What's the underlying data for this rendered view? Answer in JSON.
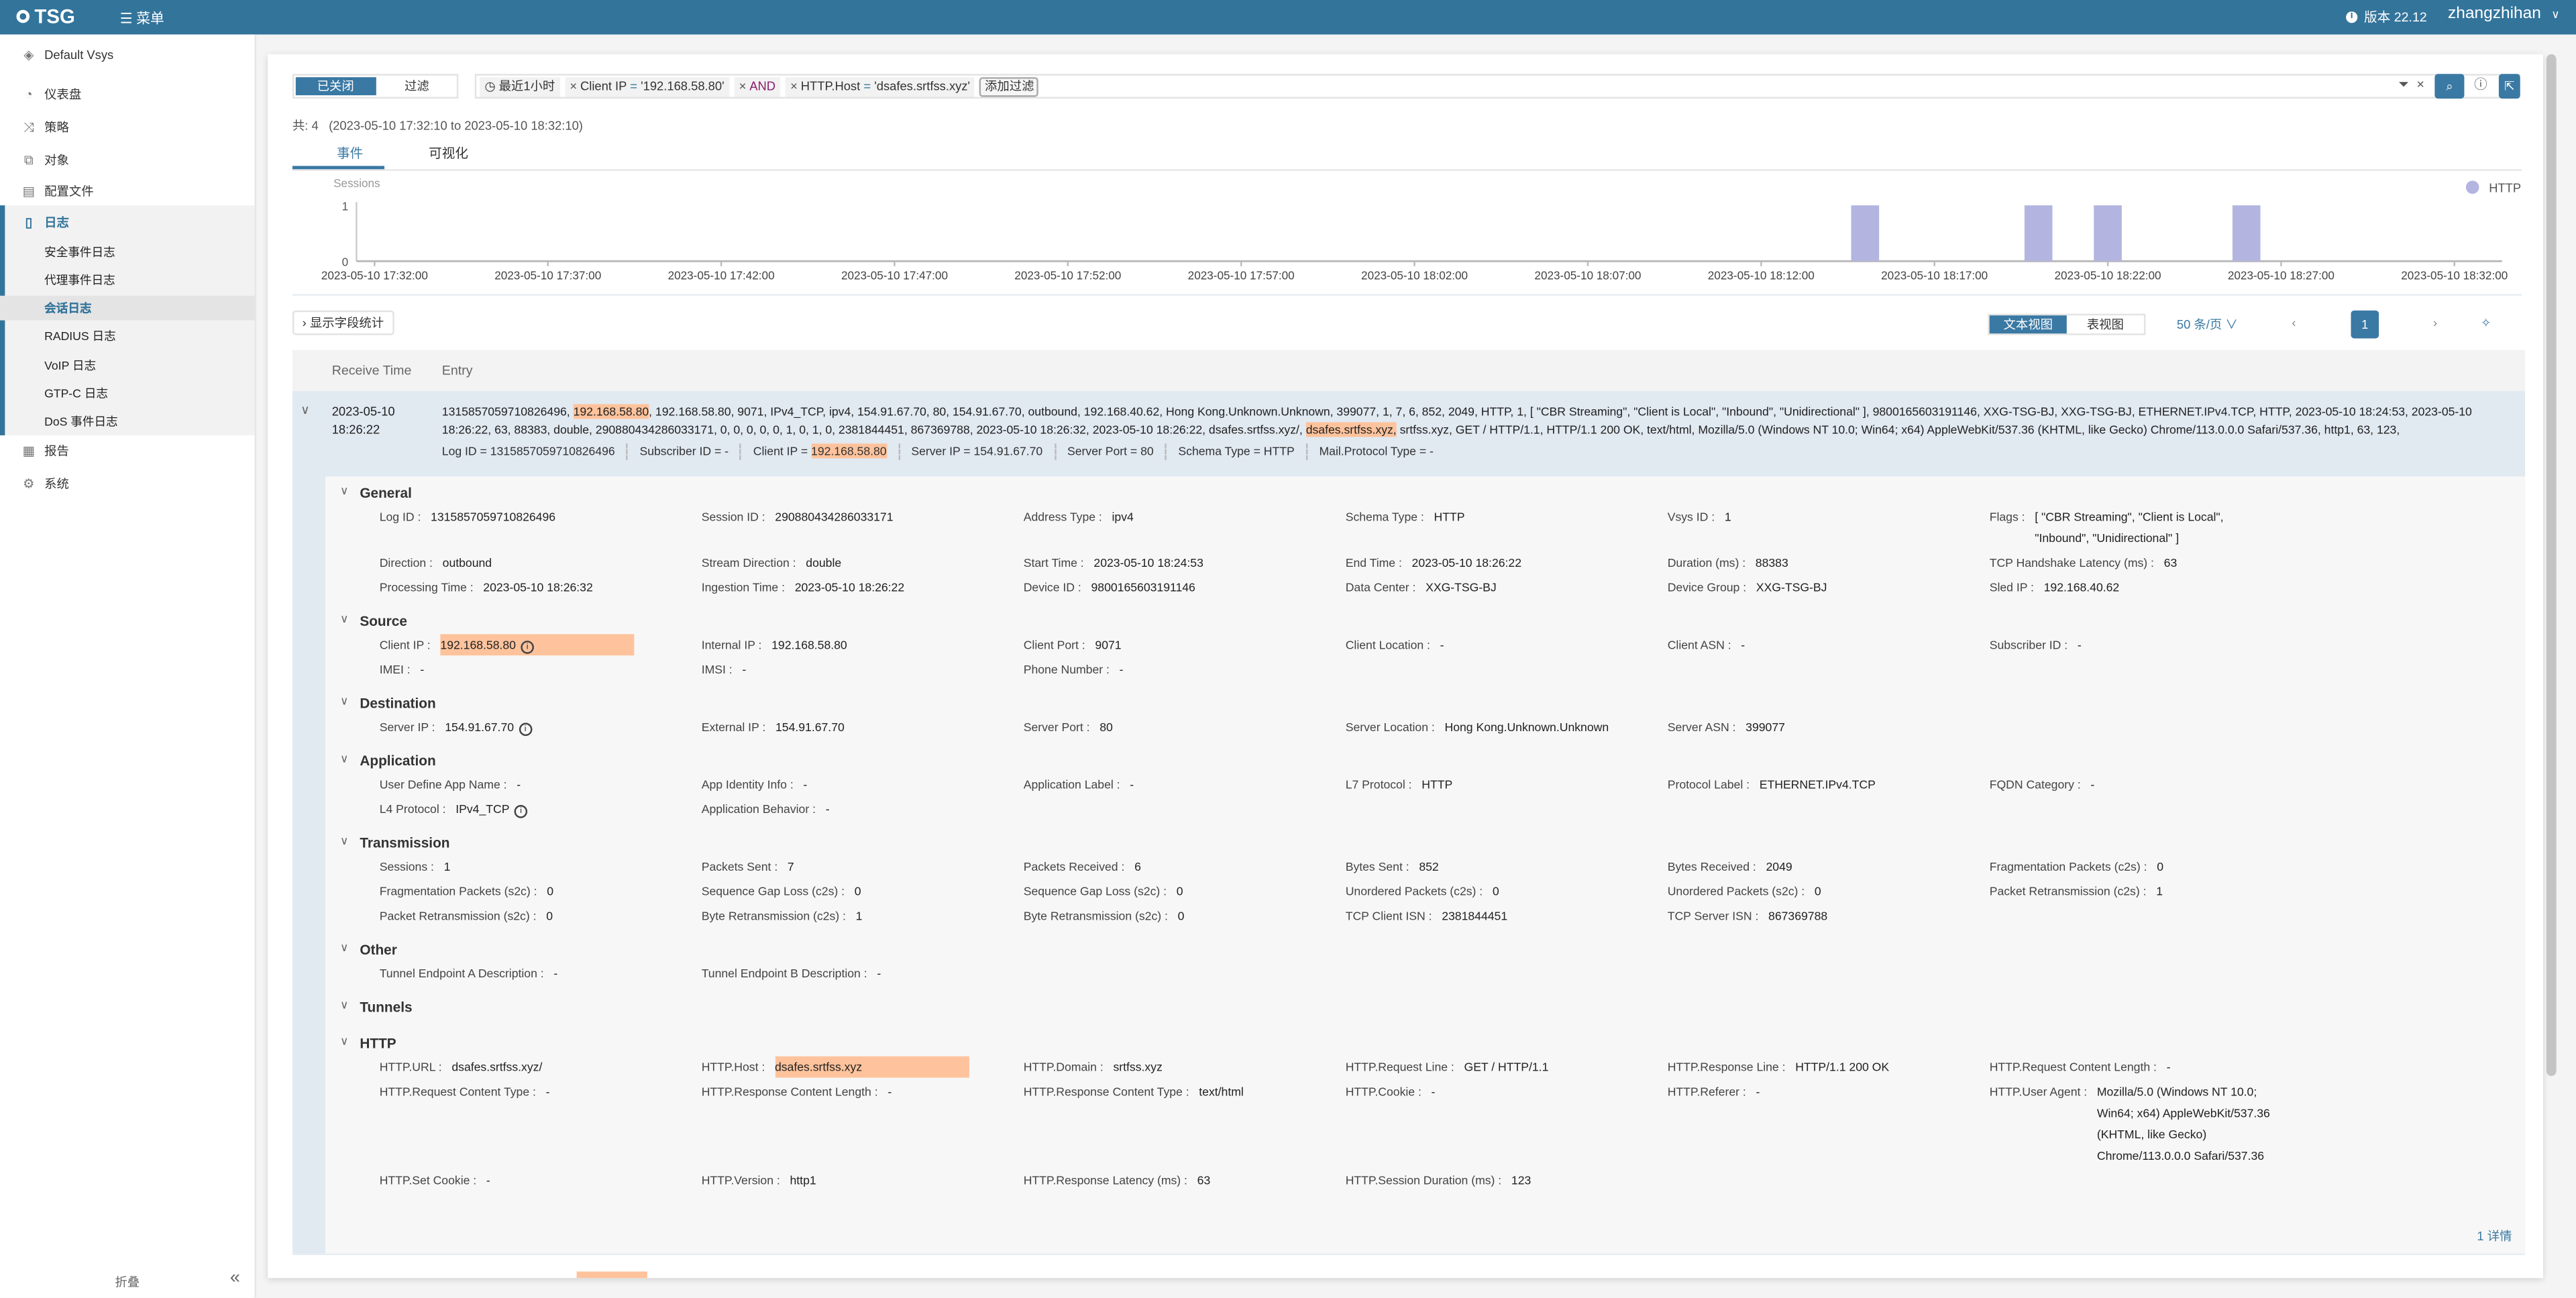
{
  "header": {
    "logo": "TSG",
    "menu_label": "菜单",
    "version": "版本 22.12",
    "user": "zhangzhihan"
  },
  "sidebar": {
    "vsys": "Default Vsys",
    "items": [
      {
        "label": "仪表盘",
        "icon": "dashboard-icon"
      },
      {
        "label": "策略",
        "icon": "policy-icon"
      },
      {
        "label": "对象",
        "icon": "object-icon"
      },
      {
        "label": "配置文件",
        "icon": "profile-icon"
      },
      {
        "label": "日志",
        "icon": "log-icon"
      },
      {
        "label": "报告",
        "icon": "report-icon"
      },
      {
        "label": "系统",
        "icon": "gear-icon"
      }
    ],
    "log_sub": [
      "安全事件日志",
      "代理事件日志",
      "会话日志",
      "RADIUS 日志",
      "VoIP 日志",
      "GTP-C 日志",
      "DoS 事件日志"
    ],
    "selected_sub": "会话日志",
    "collapse": "折叠"
  },
  "filter": {
    "toggle_off": "已关闭",
    "toggle_filter": "过滤",
    "time": "最近1小时",
    "chip1_key": "Client IP",
    "chip1_op": "=",
    "chip1_val": "'192.168.58.80'",
    "and": "AND",
    "chip2_key": "HTTP.Host",
    "chip2_op": "=",
    "chip2_val": "'dsafes.srtfss.xyz'",
    "add": "添加过滤"
  },
  "summary": {
    "total": "共: 4",
    "range": "(2023-05-10 17:32:10 to 2023-05-10 18:32:10)"
  },
  "tabs": [
    "事件",
    "可视化"
  ],
  "chart_data": {
    "type": "bar",
    "ylabel": "Sessions",
    "ylim": [
      0,
      1
    ],
    "yticks": [
      "0",
      "1"
    ],
    "xticks": [
      "2023-05-10 17:32:00",
      "2023-05-10 17:37:00",
      "2023-05-10 17:42:00",
      "2023-05-10 17:47:00",
      "2023-05-10 17:52:00",
      "2023-05-10 17:57:00",
      "2023-05-10 18:02:00",
      "2023-05-10 18:07:00",
      "2023-05-10 18:12:00",
      "2023-05-10 18:17:00",
      "2023-05-10 18:22:00",
      "2023-05-10 18:27:00",
      "2023-05-10 18:32:00"
    ],
    "series": [
      {
        "name": "HTTP",
        "color": "#b3b5e0",
        "points": [
          {
            "x": "2023-05-10 18:15",
            "y": 1
          },
          {
            "x": "2023-05-10 18:20",
            "y": 1
          },
          {
            "x": "2023-05-10 18:22",
            "y": 1
          },
          {
            "x": "2023-05-10 18:26",
            "y": 1
          }
        ]
      }
    ],
    "legend": "top-right"
  },
  "toolbar": {
    "stats": "显示字段统计",
    "text_view": "文本视图",
    "table_view": "表视图",
    "per_page": "50 条/页",
    "page": "1"
  },
  "table": {
    "col_time": "Receive Time",
    "col_entry": "Entry",
    "row": {
      "date": "2023-05-10",
      "time": "18:26:22",
      "entry_a": "1315857059710826496, ",
      "entry_hl1": "192.168.58.80",
      "entry_b": ", 192.168.58.80, 9071, IPv4_TCP, ipv4, 154.91.67.70, 80, 154.91.67.70, outbound, 192.168.40.62, Hong Kong.Unknown.Unknown, 399077, 1, 7, 6, 852, 2049, HTTP, 1, [ \"CBR Streaming\", \"Client is Local\", \"Inbound\", \"Unidirectional\" ], 9800165603191146, XXG-TSG-BJ, XXG-TSG-BJ, ETHERNET.IPv4.TCP, HTTP, 2023-05-10 18:24:53, 2023-05-10 18:26:22, 63, 88383, double, 290880434286033171, 0, 0, 0, 0, 0, 1, 0, 1, 0, 2381844451, 867369788, 2023-05-10 18:26:32, 2023-05-10 18:26:22, dsafes.srtfss.xyz/, ",
      "entry_hl2": "dsafes.srtfss.xyz,",
      "entry_c": " srtfss.xyz, GET / HTTP/1.1, HTTP/1.1 200 OK, text/html, Mozilla/5.0 (Windows NT 10.0; Win64; x64) AppleWebKit/537.36 (KHTML, like Gecko) Chrome/113.0.0.0 Safari/537.36, http1, 63, 123,",
      "summary": {
        "log_id": "Log ID = 1315857059710826496",
        "subscriber": "Subscriber ID = -",
        "client_ip_label": "Client IP = ",
        "client_ip": "192.168.58.80",
        "server_ip": "Server IP = 154.91.67.70",
        "server_port": "Server Port = 80",
        "schema": "Schema Type = HTTP",
        "mail": "Mail.Protocol Type = -"
      },
      "more": "1 详情"
    }
  },
  "details": [
    {
      "title": "General",
      "fields": [
        {
          "label": "Log ID :",
          "value": "1315857059710826496"
        },
        {
          "label": "Session ID :",
          "value": "290880434286033171"
        },
        {
          "label": "Address Type :",
          "value": "ipv4"
        },
        {
          "label": "Schema Type :",
          "value": "HTTP"
        },
        {
          "label": "Vsys ID :",
          "value": "1"
        },
        {
          "label": "Flags :",
          "value": "[ \"CBR Streaming\", \"Client is Local\", \"Inbound\", \"Unidirectional\" ]"
        },
        {
          "label": "Direction :",
          "value": "outbound"
        },
        {
          "label": "Stream Direction :",
          "value": "double"
        },
        {
          "label": "Start Time :",
          "value": "2023-05-10 18:24:53"
        },
        {
          "label": "End Time :",
          "value": "2023-05-10 18:26:22"
        },
        {
          "label": "Duration (ms) :",
          "value": "88383"
        },
        {
          "label": "TCP Handshake Latency (ms) :",
          "value": "63"
        },
        {
          "label": "Processing Time :",
          "value": "2023-05-10 18:26:32"
        },
        {
          "label": "Ingestion Time :",
          "value": "2023-05-10 18:26:22"
        },
        {
          "label": "Device ID :",
          "value": "9800165603191146"
        },
        {
          "label": "Data Center :",
          "value": "XXG-TSG-BJ"
        },
        {
          "label": "Device Group :",
          "value": "XXG-TSG-BJ"
        },
        {
          "label": "Sled IP :",
          "value": "192.168.40.62"
        }
      ]
    },
    {
      "title": "Source",
      "fields": [
        {
          "label": "Client IP :",
          "value": "192.168.58.80",
          "highlight": true,
          "info": true
        },
        {
          "label": "Internal IP :",
          "value": "192.168.58.80"
        },
        {
          "label": "Client Port :",
          "value": "9071"
        },
        {
          "label": "Client Location :",
          "value": "-"
        },
        {
          "label": "Client ASN :",
          "value": "-"
        },
        {
          "label": "Subscriber ID :",
          "value": "-"
        },
        {
          "label": "IMEI :",
          "value": "-"
        },
        {
          "label": "IMSI :",
          "value": "-"
        },
        {
          "label": "Phone Number :",
          "value": "-"
        }
      ]
    },
    {
      "title": "Destination",
      "fields": [
        {
          "label": "Server IP :",
          "value": "154.91.67.70",
          "info": true
        },
        {
          "label": "External IP :",
          "value": "154.91.67.70"
        },
        {
          "label": "Server Port :",
          "value": "80"
        },
        {
          "label": "Server Location :",
          "value": "Hong Kong.Unknown.Unknown"
        },
        {
          "label": "Server ASN :",
          "value": "399077"
        }
      ]
    },
    {
      "title": "Application",
      "fields": [
        {
          "label": "User Define App Name :",
          "value": "-"
        },
        {
          "label": "App Identity Info :",
          "value": "-"
        },
        {
          "label": "Application Label :",
          "value": "-"
        },
        {
          "label": "L7 Protocol :",
          "value": "HTTP"
        },
        {
          "label": "Protocol Label :",
          "value": "ETHERNET.IPv4.TCP"
        },
        {
          "label": "FQDN Category :",
          "value": "-"
        },
        {
          "label": "L4 Protocol :",
          "value": "IPv4_TCP",
          "info": true
        },
        {
          "label": "Application Behavior :",
          "value": "-"
        }
      ]
    },
    {
      "title": "Transmission",
      "fields": [
        {
          "label": "Sessions :",
          "value": "1"
        },
        {
          "label": "Packets Sent :",
          "value": "7"
        },
        {
          "label": "Packets Received :",
          "value": "6"
        },
        {
          "label": "Bytes Sent :",
          "value": "852"
        },
        {
          "label": "Bytes Received :",
          "value": "2049"
        },
        {
          "label": "Fragmentation Packets (c2s) :",
          "value": "0"
        },
        {
          "label": "Fragmentation Packets (s2c) :",
          "value": "0"
        },
        {
          "label": "Sequence Gap Loss (c2s) :",
          "value": "0"
        },
        {
          "label": "Sequence Gap Loss (s2c) :",
          "value": "0"
        },
        {
          "label": "Unordered Packets (c2s) :",
          "value": "0"
        },
        {
          "label": "Unordered Packets (s2c) :",
          "value": "0"
        },
        {
          "label": "Packet Retransmission (c2s) :",
          "value": "1"
        },
        {
          "label": "Packet Retransmission (s2c) :",
          "value": "0"
        },
        {
          "label": "Byte Retransmission (c2s) :",
          "value": "1"
        },
        {
          "label": "Byte Retransmission (s2c) :",
          "value": "0"
        },
        {
          "label": "TCP Client ISN :",
          "value": "2381844451"
        },
        {
          "label": "TCP Server ISN :",
          "value": "867369788"
        }
      ]
    },
    {
      "title": "Other",
      "fields": [
        {
          "label": "Tunnel Endpoint A Description :",
          "value": "-"
        },
        {
          "label": "Tunnel Endpoint B Description :",
          "value": "-"
        }
      ]
    },
    {
      "title": "Tunnels",
      "fields": []
    },
    {
      "title": "HTTP",
      "fields": [
        {
          "label": "HTTP.URL :",
          "value": "dsafes.srtfss.xyz/"
        },
        {
          "label": "HTTP.Host :",
          "value": "dsafes.srtfss.xyz",
          "highlight": true
        },
        {
          "label": "HTTP.Domain :",
          "value": "srtfss.xyz"
        },
        {
          "label": "HTTP.Request Line :",
          "value": "GET / HTTP/1.1"
        },
        {
          "label": "HTTP.Response Line :",
          "value": "HTTP/1.1 200 OK"
        },
        {
          "label": "HTTP.Request Content Length :",
          "value": "-"
        },
        {
          "label": "HTTP.Request Content Type :",
          "value": "-"
        },
        {
          "label": "HTTP.Response Content Length :",
          "value": "-"
        },
        {
          "label": "HTTP.Response Content Type :",
          "value": "text/html"
        },
        {
          "label": "HTTP.Cookie :",
          "value": "-"
        },
        {
          "label": "HTTP.Referer :",
          "value": "-"
        },
        {
          "label": "HTTP.User Agent :",
          "value": "Mozilla/5.0 (Windows NT 10.0; Win64; x64) AppleWebKit/537.36 (KHTML, like Gecko) Chrome/113.0.0.0 Safari/537.36"
        },
        {
          "label": "HTTP.Set Cookie :",
          "value": "-"
        },
        {
          "label": "HTTP.Version :",
          "value": "http1"
        },
        {
          "label": "HTTP.Response Latency (ms) :",
          "value": "63"
        },
        {
          "label": "HTTP.Session Duration (ms) :",
          "value": "123"
        }
      ]
    }
  ]
}
